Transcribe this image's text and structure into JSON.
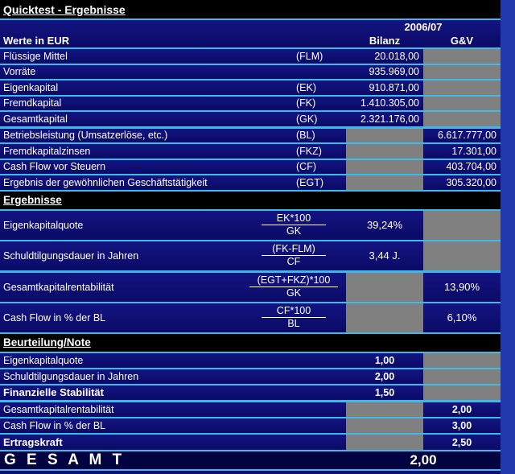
{
  "colors": {
    "background": "#0d0d74",
    "section_bar": "#000000",
    "grid_line": "#3fb9e9",
    "cell_gray": "#808080",
    "side_band": "#2239ad",
    "gesamt_bar": "#020240",
    "text": "#ffffff"
  },
  "title": "Quicktest - Ergebnisse",
  "header": {
    "year": "2006/07",
    "label": "Werte in EUR",
    "col_bilanz": "Bilanz",
    "col_gv": "G&V"
  },
  "values_section": {
    "rows": [
      {
        "label": "Flüssige Mittel",
        "abbr": "(FLM)",
        "bilanz": "20.018,00"
      },
      {
        "label": "Vorräte",
        "abbr": "",
        "bilanz": "935.969,00"
      },
      {
        "label": "Eigenkapital",
        "abbr": "(EK)",
        "bilanz": "910.871,00"
      },
      {
        "label": "Fremdkapital",
        "abbr": "(FK)",
        "bilanz": "1.410.305,00"
      },
      {
        "label": "Gesamtkapital",
        "abbr": "(GK)",
        "bilanz": "2.321.176,00"
      },
      {
        "label": "Betriebsleistung (Umsatzerlöse, etc.)",
        "abbr": "(BL)",
        "gv": "6.617.777,00"
      },
      {
        "label": "Fremdkapitalzinsen",
        "abbr": "(FKZ)",
        "gv": "17.301,00"
      },
      {
        "label": "Cash Flow vor Steuern",
        "abbr": "(CF)",
        "gv": "403.704,00"
      },
      {
        "label": "Ergebnis der gewöhnlichen Geschäftstätigkeit",
        "abbr": "(EGT)",
        "gv": "305.320,00"
      }
    ]
  },
  "ergebnisse_section": {
    "heading": "Ergebnisse",
    "rows": [
      {
        "label": "Eigenkapitalquote",
        "formula_numerator": "EK*100",
        "formula_denominator": "GK",
        "bilanz": "39,24%"
      },
      {
        "label": "Schuldtilgungsdauer in Jahren",
        "formula_numerator": "(FK-FLM)",
        "formula_denominator": "CF",
        "bilanz": "3,44 J."
      },
      {
        "label": "Gesamtkapitalrentabilität",
        "formula_numerator": "(EGT+FKZ)*100",
        "formula_denominator": "GK",
        "gv": "13,90%"
      },
      {
        "label": "Cash Flow in % der BL",
        "formula_numerator": "CF*100",
        "formula_denominator": "BL",
        "gv": "6,10%"
      }
    ]
  },
  "beurteilung_section": {
    "heading": "Beurteilung/Note",
    "rows": [
      {
        "label": "Eigenkapitalquote",
        "bilanz": "1,00"
      },
      {
        "label": "Schuldtilgungsdauer in Jahren",
        "bilanz": "2,00"
      },
      {
        "label": "Finanzielle Stabilität",
        "bilanz": "1,50",
        "emphasis": true
      },
      {
        "label": "Gesamtkapitalrentabilität",
        "gv": "2,00"
      },
      {
        "label": "Cash Flow in % der BL",
        "gv": "3,00"
      },
      {
        "label": "Ertragskraft",
        "gv": "2,50",
        "emphasis": true
      }
    ]
  },
  "gesamt": {
    "label": "G E S A M T",
    "value": "2,00"
  }
}
